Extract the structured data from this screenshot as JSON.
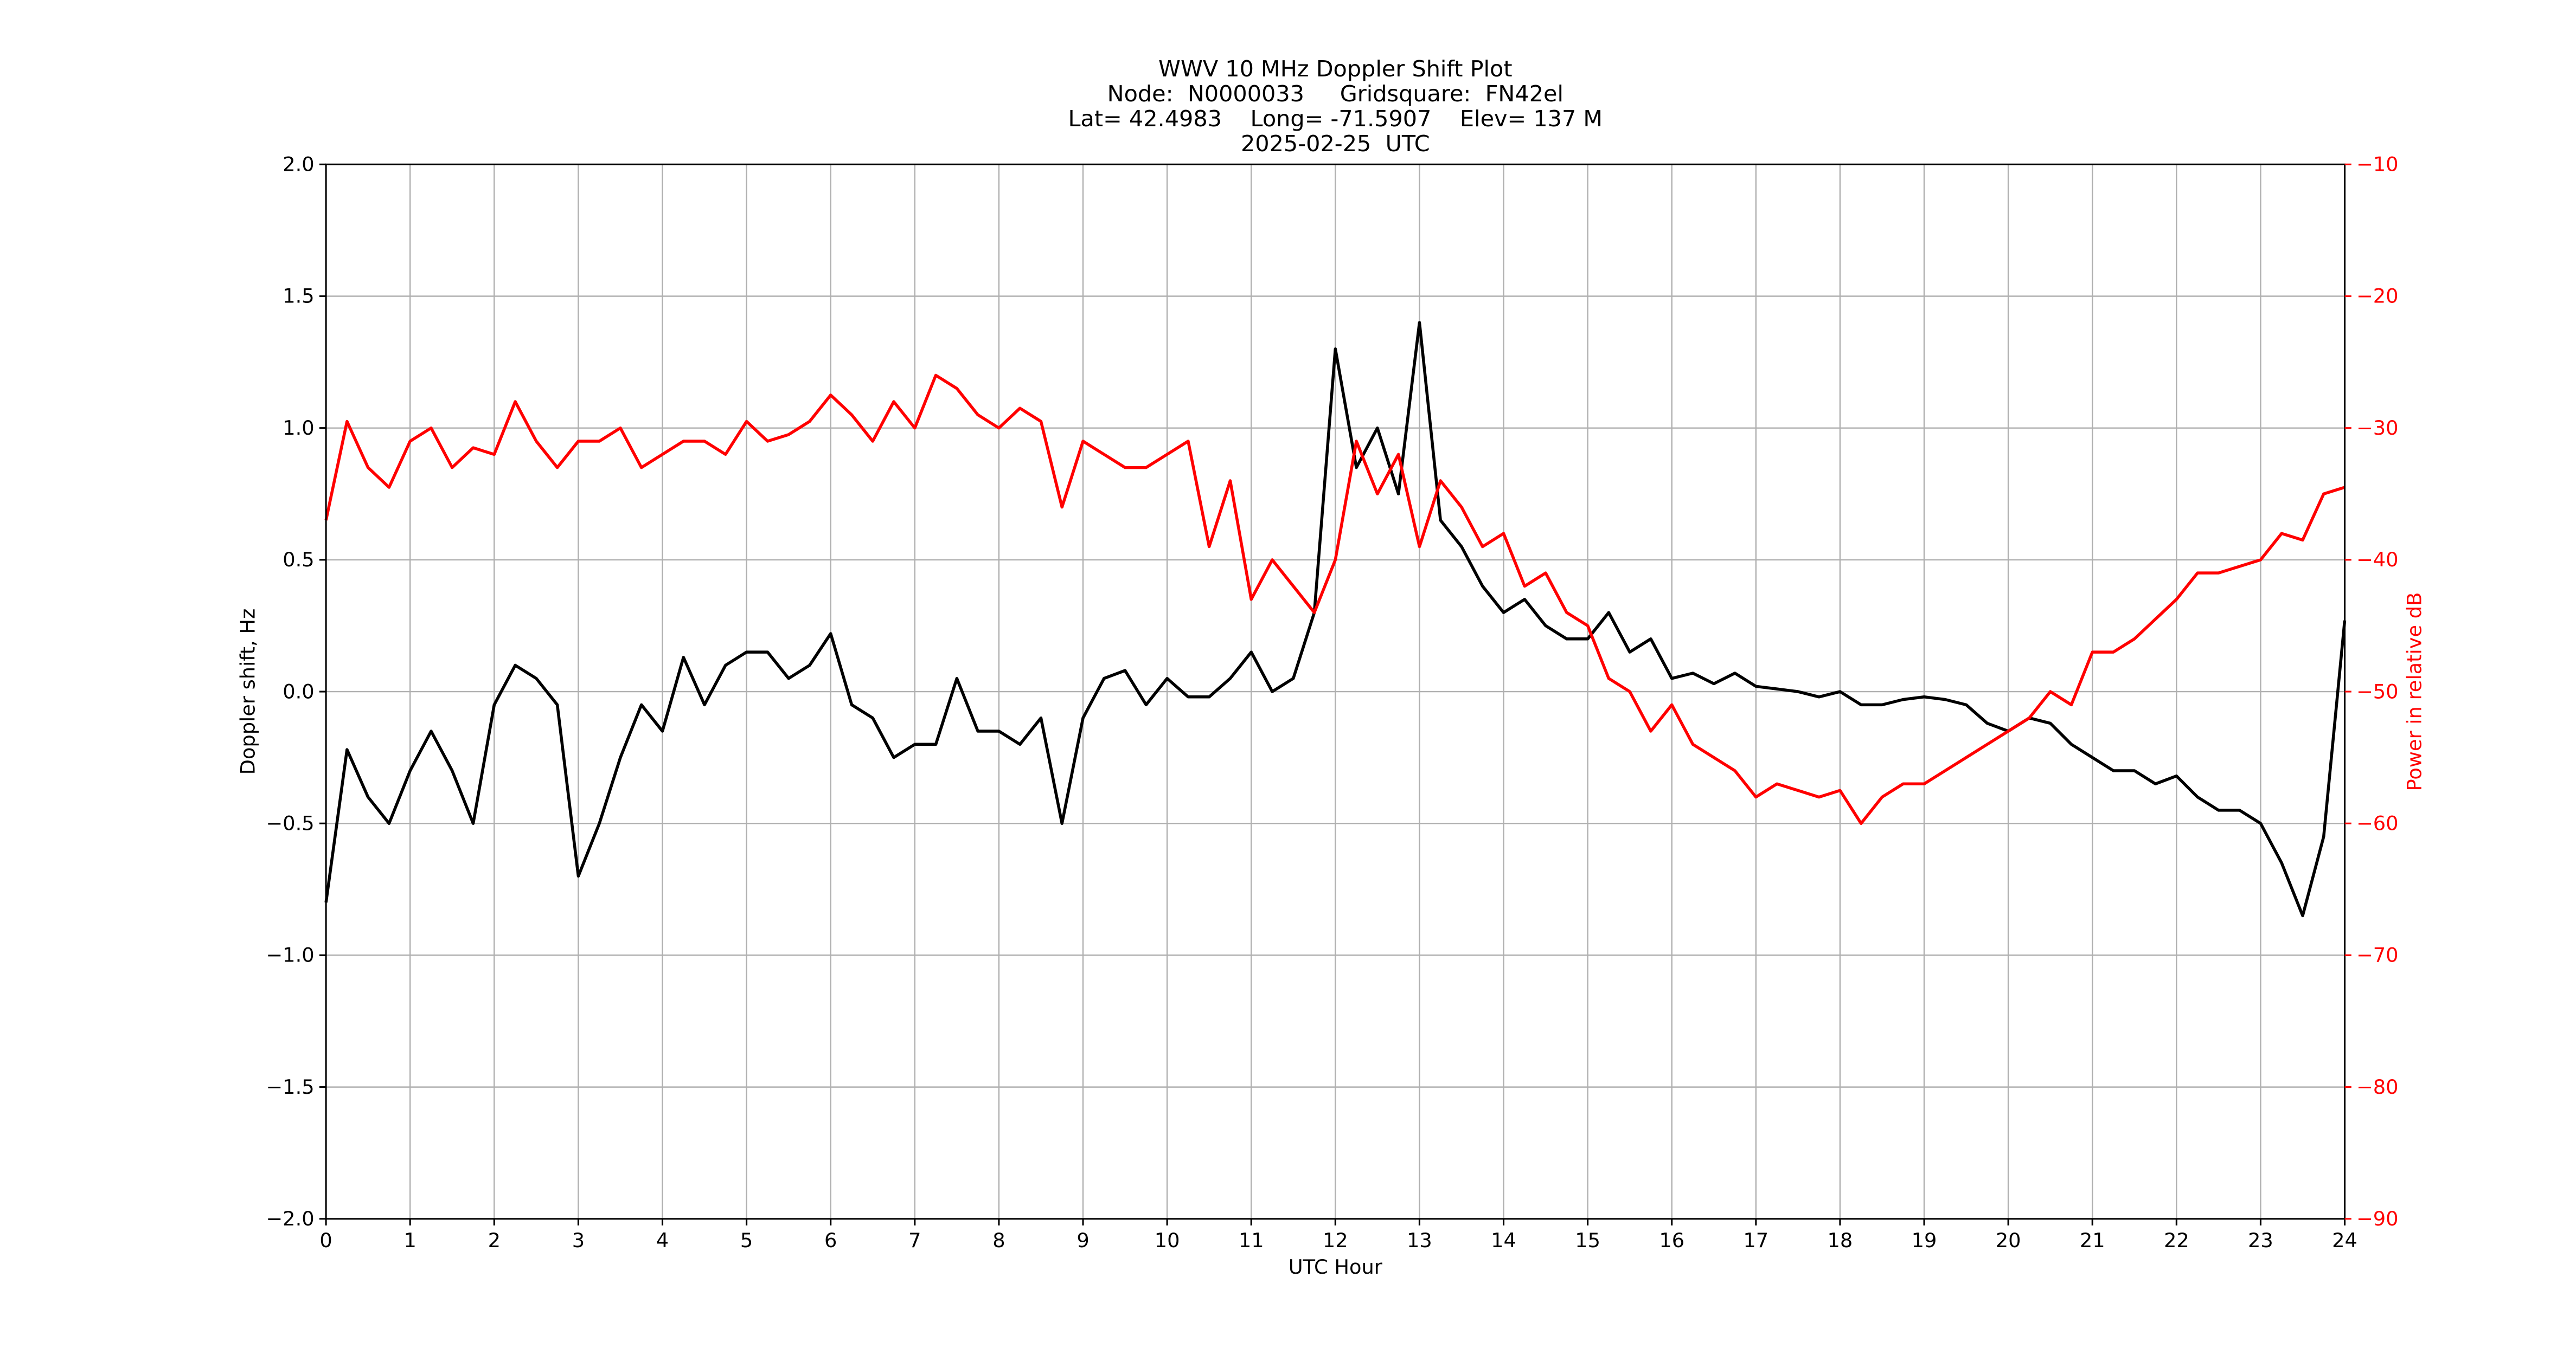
{
  "chart_data": {
    "type": "line",
    "title": [
      "WWV 10 MHz Doppler Shift Plot",
      "Node:  N0000033     Gridsquare:  FN42el",
      "Lat= 42.4983    Long= -71.5907    Elev= 137 M",
      "2025-02-25  UTC"
    ],
    "xlabel": "UTC Hour",
    "ylabel": "Doppler shift, Hz",
    "y2label": "Power in relative dB",
    "y2color": "#ff0000",
    "grid": true,
    "x": [
      0,
      0.25,
      0.5,
      0.75,
      1,
      1.25,
      1.5,
      1.75,
      2,
      2.25,
      2.5,
      2.75,
      3,
      3.25,
      3.5,
      3.75,
      4,
      4.25,
      4.5,
      4.75,
      5,
      5.25,
      5.5,
      5.75,
      6,
      6.25,
      6.5,
      6.75,
      7,
      7.25,
      7.5,
      7.75,
      8,
      8.25,
      8.5,
      8.75,
      9,
      9.25,
      9.5,
      9.75,
      10,
      10.25,
      10.5,
      10.75,
      11,
      11.25,
      11.5,
      11.75,
      12,
      12.25,
      12.5,
      12.75,
      13,
      13.25,
      13.5,
      13.75,
      14,
      14.25,
      14.5,
      14.75,
      15,
      15.25,
      15.5,
      15.75,
      16,
      16.25,
      16.5,
      16.75,
      17,
      17.25,
      17.5,
      17.75,
      18,
      18.25,
      18.5,
      18.75,
      19,
      19.25,
      19.5,
      19.75,
      20,
      20.25,
      20.5,
      20.75,
      21,
      21.25,
      21.5,
      21.75,
      22,
      22.25,
      22.5,
      22.75,
      23,
      23.25,
      23.5,
      23.75,
      24
    ],
    "series": [
      {
        "name": "Doppler shift",
        "color": "#000000",
        "axis": "y",
        "values": [
          -0.8,
          -0.22,
          -0.4,
          -0.5,
          -0.3,
          -0.15,
          -0.3,
          -0.5,
          -0.05,
          0.1,
          0.05,
          -0.05,
          -0.7,
          -0.5,
          -0.25,
          -0.05,
          -0.15,
          0.13,
          -0.05,
          0.1,
          0.15,
          0.15,
          0.05,
          0.1,
          0.22,
          -0.05,
          -0.1,
          -0.25,
          -0.2,
          -0.2,
          0.05,
          -0.15,
          -0.15,
          -0.2,
          -0.1,
          -0.5,
          -0.1,
          0.05,
          0.08,
          -0.05,
          0.05,
          -0.02,
          -0.02,
          0.05,
          0.15,
          0.0,
          0.05,
          0.3,
          1.3,
          0.85,
          1.0,
          0.75,
          1.4,
          0.65,
          0.55,
          0.4,
          0.3,
          0.35,
          0.25,
          0.2,
          0.2,
          0.3,
          0.15,
          0.2,
          0.05,
          0.07,
          0.03,
          0.07,
          0.02,
          0.01,
          0,
          -0.02,
          0,
          -0.05,
          -0.05,
          -0.03,
          -0.02,
          -0.03,
          -0.05,
          -0.12,
          -0.15,
          -0.1,
          -0.12,
          -0.2,
          -0.25,
          -0.3,
          -0.3,
          -0.35,
          -0.32,
          -0.4,
          -0.45,
          -0.45,
          -0.5,
          -0.65,
          -0.85,
          -0.55,
          0.27
        ]
      },
      {
        "name": "Power",
        "color": "#ff0000",
        "axis": "y2",
        "values": [
          -37,
          -29.5,
          -33,
          -34.5,
          -31,
          -30,
          -33,
          -31.5,
          -32,
          -28,
          -31,
          -33,
          -31,
          -31,
          -30,
          -33,
          -32,
          -31,
          -31,
          -32,
          -29.5,
          -31,
          -30.5,
          -29.5,
          -27.5,
          -29,
          -31,
          -28,
          -30,
          -26,
          -27,
          -29,
          -30,
          -28.5,
          -29.5,
          -36,
          -31,
          -32,
          -33,
          -33,
          -32,
          -31,
          -39,
          -34,
          -43,
          -40,
          -42,
          -44,
          -40,
          -31,
          -35,
          -32,
          -39,
          -34,
          -36,
          -39,
          -38,
          -42,
          -41,
          -44,
          -45,
          -49,
          -50,
          -53,
          -51,
          -54,
          -55,
          -56,
          -58,
          -57,
          -57.5,
          -58,
          -57.5,
          -60,
          -58,
          -57,
          -57,
          -56,
          -55,
          -54,
          -53,
          -52,
          -50,
          -51,
          -47,
          -47,
          -46,
          -44.5,
          -43,
          -41,
          -41,
          -40.5,
          -40,
          -38,
          -38.5,
          -35,
          -34.5
        ]
      }
    ],
    "xlim": [
      0,
      24
    ],
    "xticks": [
      0,
      1,
      2,
      3,
      4,
      5,
      6,
      7,
      8,
      9,
      10,
      11,
      12,
      13,
      14,
      15,
      16,
      17,
      18,
      19,
      20,
      21,
      22,
      23,
      24
    ],
    "ylim": [
      -2,
      2
    ],
    "yticks": [
      {
        "value": -2,
        "label": "−2.0"
      },
      {
        "value": -1.5,
        "label": "−1.5"
      },
      {
        "value": -1,
        "label": "−1.0"
      },
      {
        "value": -0.5,
        "label": "−0.5"
      },
      {
        "value": 0,
        "label": "0.0"
      },
      0.5,
      {
        "value": 1,
        "label": "1.0"
      },
      1.5,
      {
        "value": 2,
        "label": "2.0"
      }
    ],
    "y2lim": [
      -90,
      -10
    ],
    "y2ticks": [
      {
        "value": -90,
        "label": "−90"
      },
      {
        "value": -80,
        "label": "−80"
      },
      {
        "value": -70,
        "label": "−70"
      },
      {
        "value": -60,
        "label": "−60"
      },
      {
        "value": -50,
        "label": "−50"
      },
      {
        "value": -40,
        "label": "−40"
      },
      {
        "value": -30,
        "label": "−30"
      },
      {
        "value": -20,
        "label": "−20"
      },
      {
        "value": -10,
        "label": "−10"
      }
    ]
  }
}
